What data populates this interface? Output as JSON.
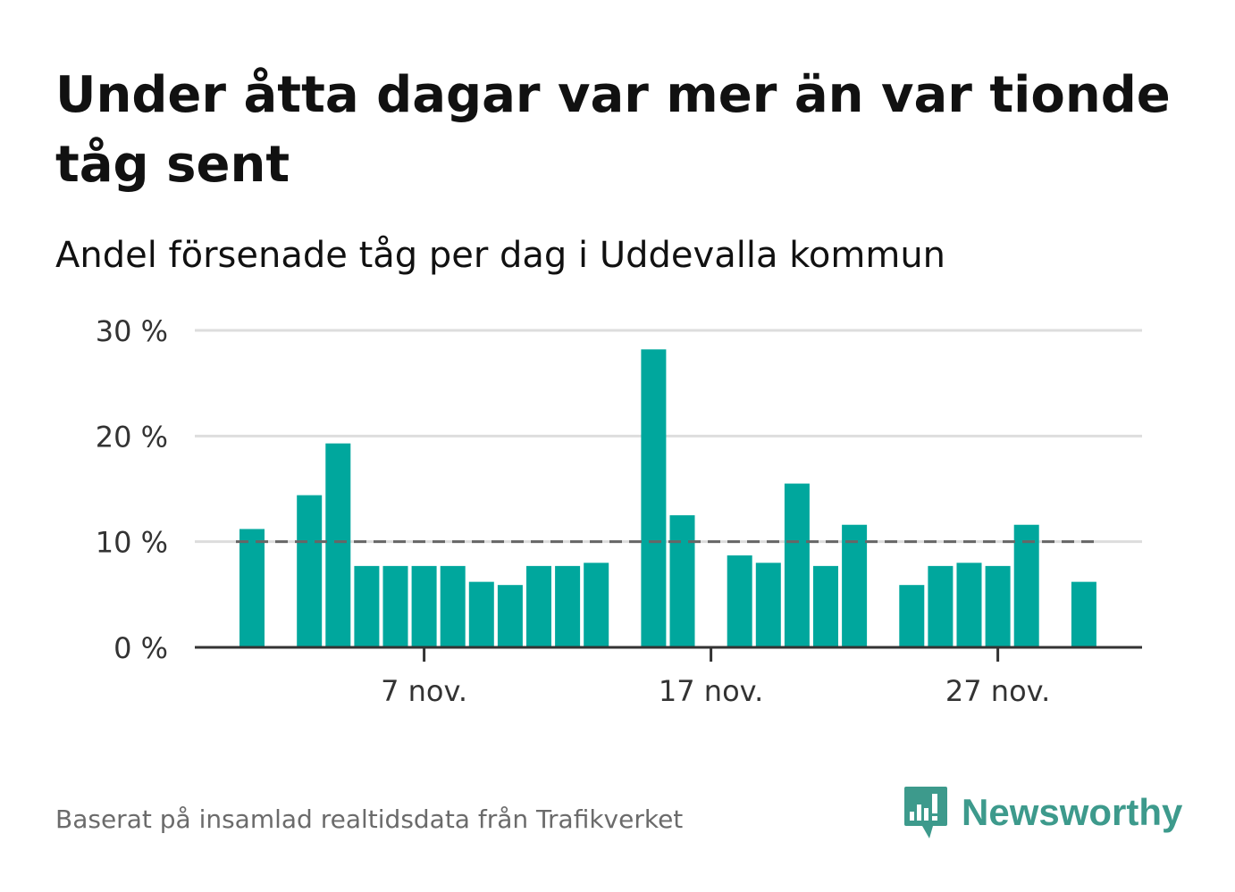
{
  "title": "Under åtta dagar var mer än var tionde tåg sent",
  "subtitle": "Andel försenade tåg per dag i Uddevalla kommun",
  "source": "Baserat på insamlad realtidsdata från Trafikverket",
  "brand": {
    "name": "Newsworthy",
    "color": "#3d9a8c"
  },
  "colors": {
    "bar": "#00a79d",
    "grid": "#dddddd",
    "axis": "#333333",
    "reference": "#666666"
  },
  "chart_data": {
    "type": "bar",
    "x_unit": "day of November",
    "x": [
      1,
      2,
      3,
      4,
      5,
      6,
      7,
      8,
      9,
      10,
      11,
      12,
      13,
      14,
      15,
      16,
      17,
      18,
      19,
      20,
      21,
      22,
      23,
      24,
      25,
      26,
      27,
      28,
      29,
      30
    ],
    "values": [
      11.2,
      null,
      14.4,
      19.3,
      7.7,
      7.7,
      7.7,
      7.7,
      6.2,
      5.9,
      7.7,
      7.7,
      8.0,
      null,
      28.2,
      12.5,
      null,
      8.7,
      8.0,
      15.5,
      7.7,
      11.6,
      null,
      5.9,
      7.7,
      8.0,
      7.7,
      11.6,
      null,
      6.2
    ],
    "ylim": [
      0,
      30
    ],
    "yticks": [
      0,
      10,
      20,
      30
    ],
    "ytick_labels": [
      "0 %",
      "10 %",
      "20 %",
      "30 %"
    ],
    "xticks": [
      7,
      17,
      27
    ],
    "xtick_labels": [
      "7 nov.",
      "17 nov.",
      "27 nov."
    ],
    "reference_line": {
      "value": 10,
      "style": "dashed"
    },
    "grid": true
  }
}
